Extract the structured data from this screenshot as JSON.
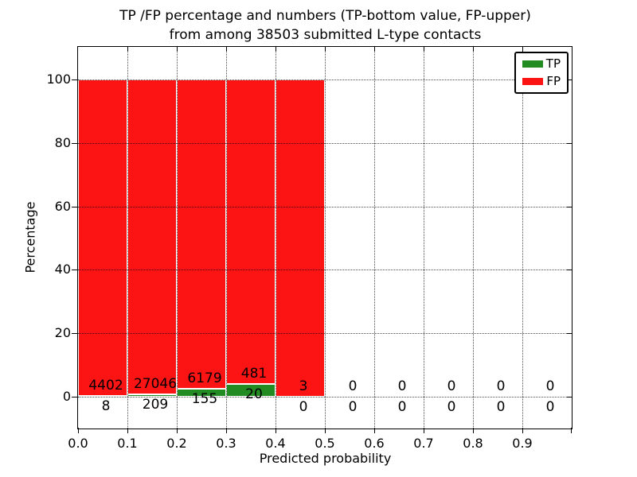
{
  "figure": {
    "title_line1": "TP /FP percentage and numbers (TP-bottom value, FP-upper)",
    "title_line2": "from among 38503 submitted L-type contacts",
    "xlabel": "Predicted probability",
    "ylabel": "Percentage"
  },
  "legend": {
    "items": [
      {
        "label": "TP",
        "color": "#228b22"
      },
      {
        "label": "FP",
        "color": "#fc1414"
      }
    ]
  },
  "chart_data": {
    "type": "bar",
    "stacked": true,
    "normalized_to_percent": true,
    "title": "TP /FP percentage and numbers (TP-bottom value, FP-upper) from among 38503 submitted L-type contacts",
    "xlabel": "Predicted probability",
    "ylabel": "Percentage",
    "total_submitted_contacts": 38503,
    "bin_width": 0.1,
    "bin_starts": [
      0.0,
      0.1,
      0.2,
      0.3,
      0.4,
      0.5,
      0.6,
      0.7,
      0.8,
      0.9
    ],
    "series": [
      {
        "name": "TP",
        "color": "#228b22",
        "counts": [
          8,
          209,
          155,
          20,
          0,
          0,
          0,
          0,
          0,
          0
        ]
      },
      {
        "name": "FP",
        "color": "#fc1414",
        "counts": [
          4402,
          27046,
          6179,
          481,
          3,
          0,
          0,
          0,
          0,
          0
        ]
      }
    ],
    "bar_percent_total": [
      100,
      100,
      100,
      100,
      100,
      0,
      0,
      0,
      0,
      0
    ],
    "xtick_labels": [
      "0.0",
      "0.1",
      "0.2",
      "0.3",
      "0.4",
      "0.5",
      "0.6",
      "0.7",
      "0.8",
      "0.9"
    ],
    "ytick_values": [
      0,
      20,
      40,
      60,
      80,
      100
    ],
    "xlim": [
      0.0,
      1.0
    ],
    "ylim": [
      -10.5,
      110.5
    ],
    "grid": "dotted",
    "grid_color": "#000000",
    "bar_edge_color": "#ffffff",
    "legend_position": "upper right"
  }
}
